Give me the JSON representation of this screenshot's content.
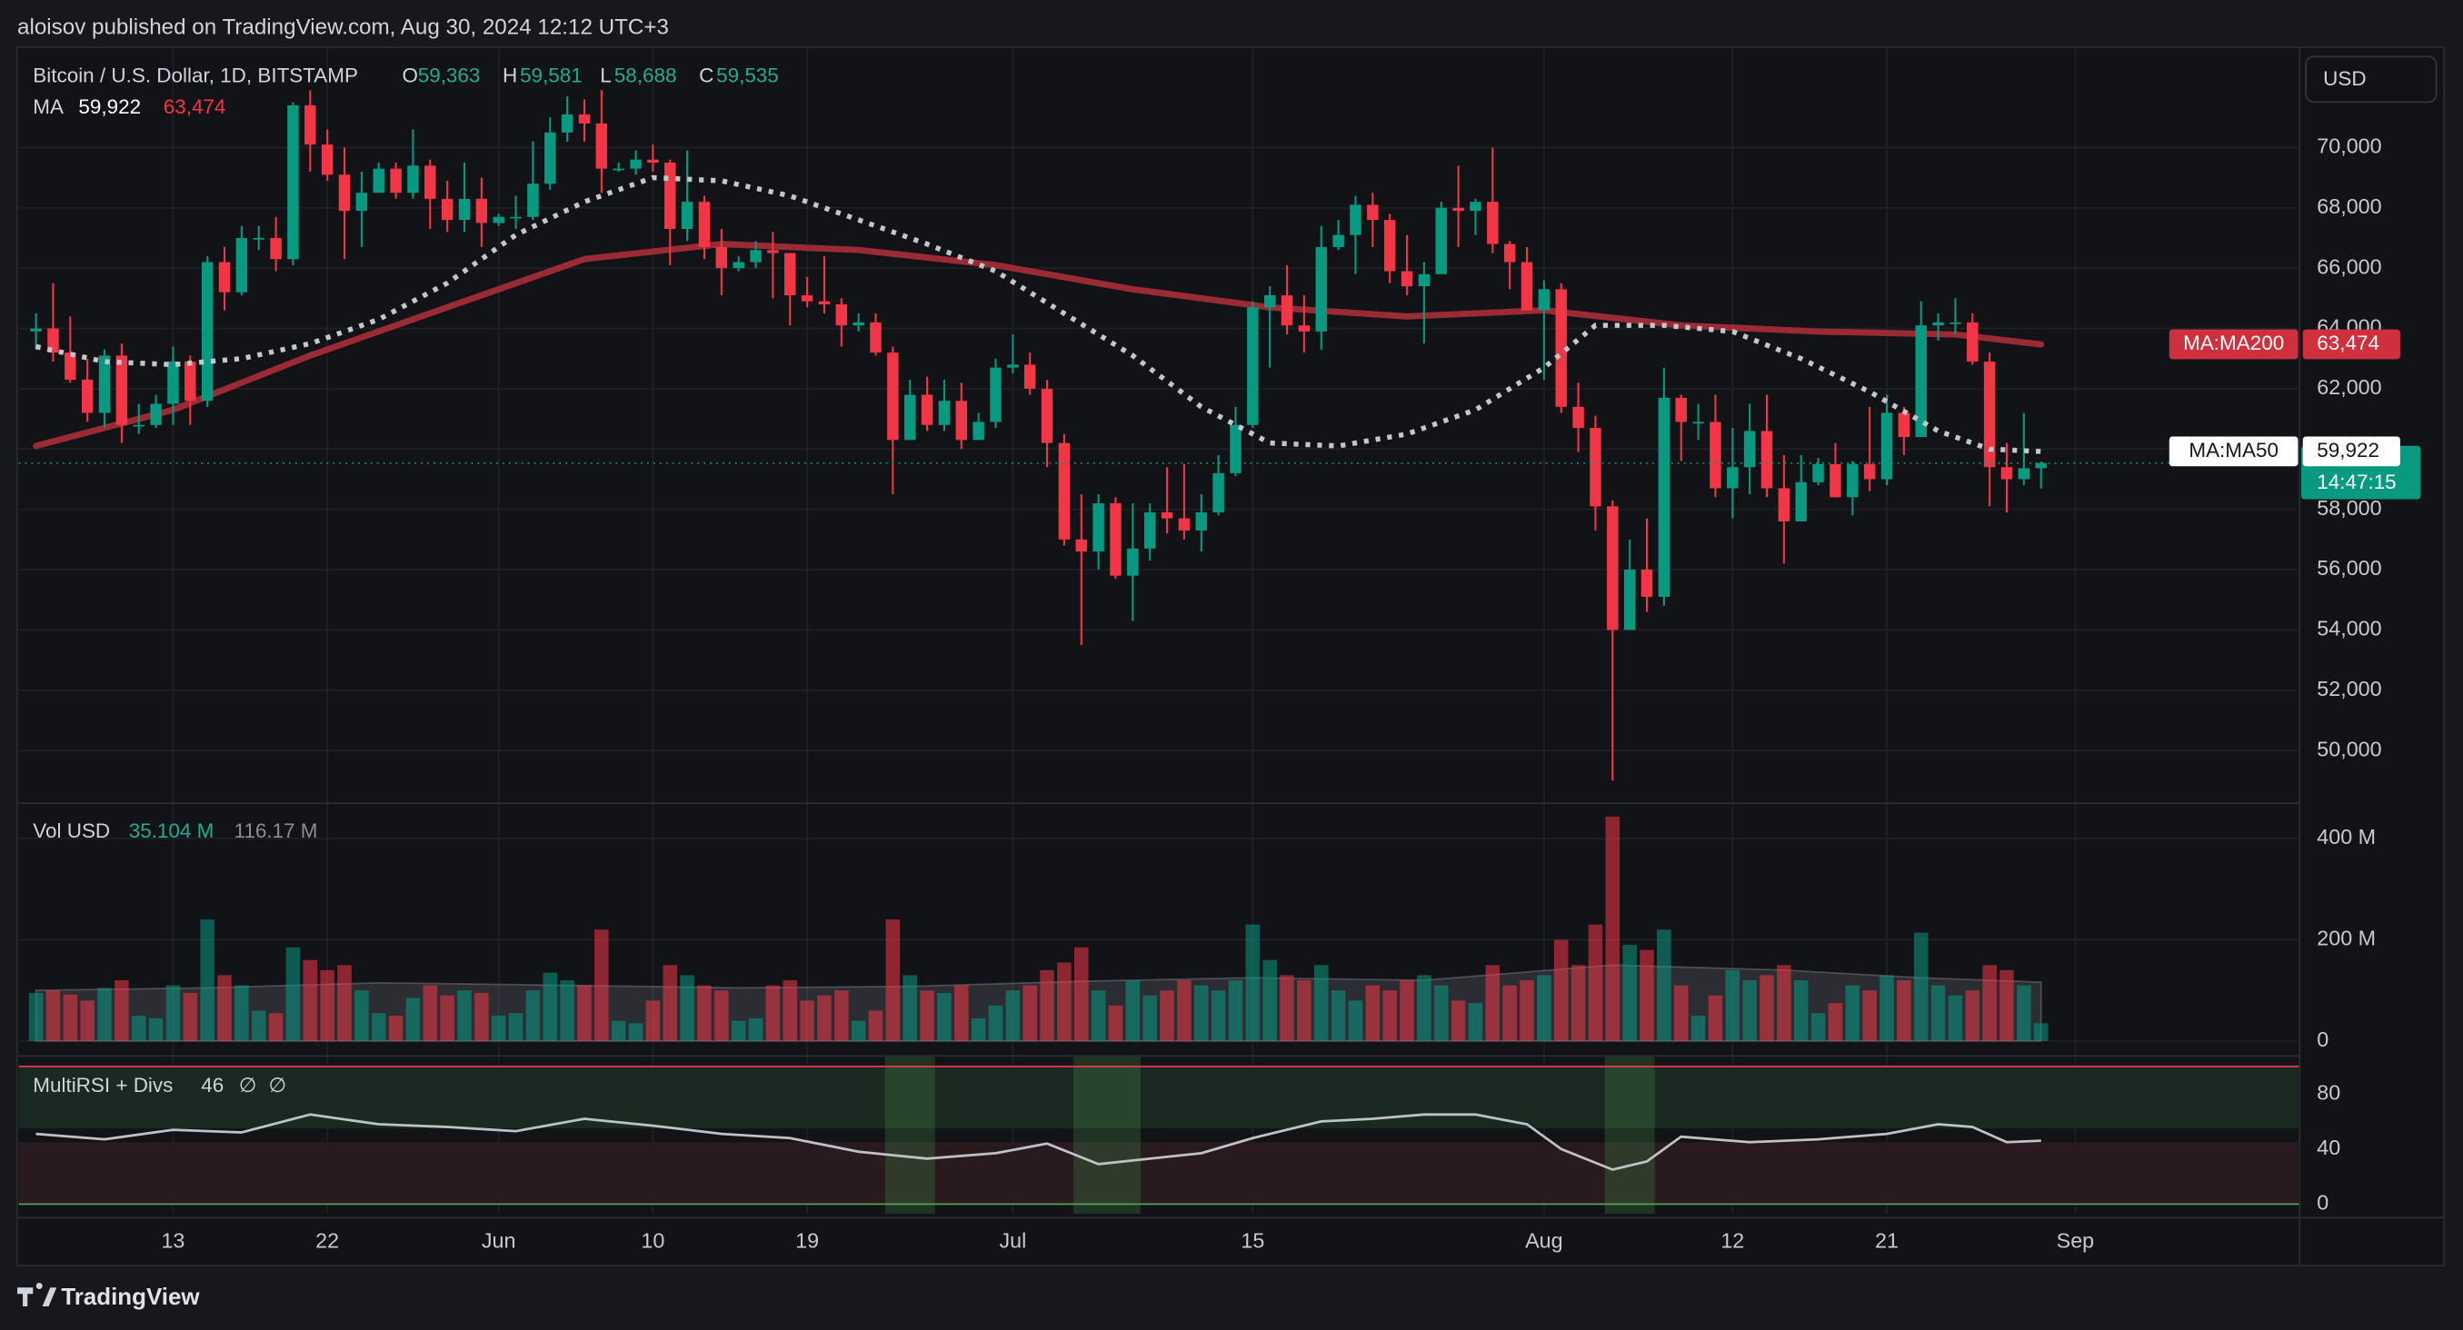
{
  "chart_data": {
    "type": "candlestick",
    "published": "aloisov published on TradingView.com, Aug 30, 2024 12:12 UTC+3",
    "title": "Bitcoin / U.S. Dollar, 1D, BITSTAMP",
    "currency": "USD",
    "footer": "TradingView",
    "up_color": "#089981",
    "down_color": "#f23645",
    "last": {
      "names": [
        "O",
        "H",
        "L",
        "C"
      ],
      "values": [
        59363,
        59581,
        58688,
        59535
      ],
      "value_labels": [
        "59,363",
        "59,581",
        "58,688",
        "59,535"
      ]
    },
    "ma_title": "MA",
    "xlim": [
      "2024-05-04",
      "2024-09-14"
    ],
    "xticks": [
      {
        "value": "2024-05-13",
        "label": "13"
      },
      {
        "value": "2024-05-22",
        "label": "22"
      },
      {
        "value": "2024-06-01",
        "label": "Jun"
      },
      {
        "value": "2024-06-10",
        "label": "10"
      },
      {
        "value": "2024-06-19",
        "label": "19"
      },
      {
        "value": "2024-07-01",
        "label": "Jul"
      },
      {
        "value": "2024-07-15",
        "label": "15"
      },
      {
        "value": "2024-08-01",
        "label": "Aug"
      },
      {
        "value": "2024-08-12",
        "label": "12"
      },
      {
        "value": "2024-08-21",
        "label": "21"
      },
      {
        "value": "2024-09-01",
        "label": "Sep"
      }
    ],
    "ylim": [
      48280,
      73330
    ],
    "yticks": [
      {
        "value": 50000,
        "label": "50,000"
      },
      {
        "value": 52000,
        "label": "52,000"
      },
      {
        "value": 54000,
        "label": "54,000"
      },
      {
        "value": 56000,
        "label": "56,000"
      },
      {
        "value": 58000,
        "label": "58,000"
      },
      {
        "value": 60000,
        "label": "60,000"
      },
      {
        "value": 62000,
        "label": "62,000"
      },
      {
        "value": 64000,
        "label": "64,000"
      },
      {
        "value": 66000,
        "label": "66,000"
      },
      {
        "value": 68000,
        "label": "68,000"
      },
      {
        "value": 70000,
        "label": "70,000"
      }
    ],
    "grid": true,
    "x": [
      "2024-05-05",
      "2024-05-06",
      "2024-05-07",
      "2024-05-08",
      "2024-05-09",
      "2024-05-10",
      "2024-05-11",
      "2024-05-12",
      "2024-05-13",
      "2024-05-14",
      "2024-05-15",
      "2024-05-16",
      "2024-05-17",
      "2024-05-18",
      "2024-05-19",
      "2024-05-20",
      "2024-05-21",
      "2024-05-22",
      "2024-05-23",
      "2024-05-24",
      "2024-05-25",
      "2024-05-26",
      "2024-05-27",
      "2024-05-28",
      "2024-05-29",
      "2024-05-30",
      "2024-05-31",
      "2024-06-01",
      "2024-06-02",
      "2024-06-03",
      "2024-06-04",
      "2024-06-05",
      "2024-06-06",
      "2024-06-07",
      "2024-06-08",
      "2024-06-09",
      "2024-06-10",
      "2024-06-11",
      "2024-06-12",
      "2024-06-13",
      "2024-06-14",
      "2024-06-15",
      "2024-06-16",
      "2024-06-17",
      "2024-06-18",
      "2024-06-19",
      "2024-06-20",
      "2024-06-21",
      "2024-06-22",
      "2024-06-23",
      "2024-06-24",
      "2024-06-25",
      "2024-06-26",
      "2024-06-27",
      "2024-06-28",
      "2024-06-29",
      "2024-06-30",
      "2024-07-01",
      "2024-07-02",
      "2024-07-03",
      "2024-07-04",
      "2024-07-05",
      "2024-07-06",
      "2024-07-07",
      "2024-07-08",
      "2024-07-09",
      "2024-07-10",
      "2024-07-11",
      "2024-07-12",
      "2024-07-13",
      "2024-07-14",
      "2024-07-15",
      "2024-07-16",
      "2024-07-17",
      "2024-07-18",
      "2024-07-19",
      "2024-07-20",
      "2024-07-21",
      "2024-07-22",
      "2024-07-23",
      "2024-07-24",
      "2024-07-25",
      "2024-07-26",
      "2024-07-27",
      "2024-07-28",
      "2024-07-29",
      "2024-07-30",
      "2024-07-31",
      "2024-08-01",
      "2024-08-02",
      "2024-08-03",
      "2024-08-04",
      "2024-08-05",
      "2024-08-06",
      "2024-08-07",
      "2024-08-08",
      "2024-08-09",
      "2024-08-10",
      "2024-08-11",
      "2024-08-12",
      "2024-08-13",
      "2024-08-14",
      "2024-08-15",
      "2024-08-16",
      "2024-08-17",
      "2024-08-18",
      "2024-08-19",
      "2024-08-20",
      "2024-08-21",
      "2024-08-22",
      "2024-08-23",
      "2024-08-24",
      "2024-08-25",
      "2024-08-26",
      "2024-08-27",
      "2024-08-28",
      "2024-08-29",
      "2024-08-30"
    ],
    "open": [
      63900,
      64000,
      63200,
      62300,
      61200,
      63100,
      60800,
      60800,
      61500,
      62900,
      61600,
      66200,
      65200,
      67000,
      67000,
      66300,
      71400,
      70100,
      69100,
      67900,
      68500,
      69300,
      68500,
      69400,
      68300,
      67600,
      68300,
      67500,
      67700,
      67700,
      68800,
      70500,
      71100,
      70800,
      69300,
      69300,
      69600,
      69500,
      67300,
      68200,
      66700,
      66000,
      66200,
      66600,
      66500,
      65100,
      64900,
      64800,
      64100,
      64200,
      63200,
      60300,
      61800,
      60800,
      61600,
      60300,
      60900,
      62700,
      62800,
      62000,
      60200,
      57000,
      56600,
      58200,
      55800,
      56700,
      57900,
      57700,
      57300,
      57900,
      59200,
      60800,
      64700,
      65100,
      64100,
      63900,
      66700,
      67100,
      68100,
      67600,
      65900,
      65400,
      65800,
      68000,
      67900,
      68200,
      66800,
      66200,
      64600,
      65300,
      61400,
      60700,
      58100,
      54000,
      56000,
      55100,
      61700,
      60900,
      60900,
      58700,
      59400,
      60600,
      58700,
      57600,
      58900,
      59500,
      58400,
      59500,
      59000,
      61200,
      60400,
      64100,
      64200,
      64200,
      62900,
      59400,
      59000,
      59363
    ],
    "high": [
      64500,
      65500,
      64400,
      63000,
      63300,
      63500,
      61500,
      61800,
      63400,
      63100,
      66400,
      66700,
      67400,
      67400,
      67700,
      71500,
      71900,
      70600,
      70000,
      69200,
      69500,
      69500,
      70600,
      69600,
      68900,
      69500,
      69000,
      67800,
      68400,
      70200,
      71000,
      71700,
      71600,
      71900,
      69500,
      69900,
      70100,
      69600,
      69900,
      68400,
      67300,
      66400,
      66900,
      67200,
      66500,
      65700,
      66400,
      65000,
      64500,
      64500,
      63400,
      62300,
      62400,
      62300,
      62200,
      61200,
      63000,
      63800,
      63200,
      62300,
      60500,
      58500,
      58500,
      58400,
      58200,
      58200,
      59400,
      59500,
      58500,
      59800,
      61400,
      64900,
      65400,
      66100,
      65100,
      67400,
      67600,
      68400,
      68500,
      67800,
      67100,
      66200,
      68200,
      69400,
      68300,
      70000,
      66900,
      66700,
      65600,
      65500,
      62200,
      61100,
      58300,
      57000,
      57700,
      62700,
      61800,
      61500,
      61800,
      60700,
      61500,
      61800,
      59800,
      59800,
      59700,
      60200,
      59600,
      61400,
      61800,
      61400,
      64900,
      64500,
      65000,
      64500,
      63200,
      60200,
      61200,
      59581
    ],
    "low": [
      63300,
      62900,
      62200,
      60900,
      60700,
      60200,
      60500,
      60700,
      60800,
      60800,
      61400,
      64600,
      65100,
      66600,
      65900,
      66100,
      69200,
      68900,
      66300,
      66700,
      68500,
      68300,
      68300,
      67300,
      67200,
      67200,
      66700,
      67400,
      67300,
      67600,
      68600,
      70200,
      70200,
      68500,
      69200,
      69100,
      69200,
      66100,
      66900,
      66300,
      65100,
      65900,
      66000,
      65000,
      64100,
      64700,
      64500,
      63400,
      63900,
      63100,
      58500,
      60300,
      60600,
      60600,
      60000,
      60300,
      60700,
      62500,
      61800,
      59400,
      56800,
      53500,
      56000,
      55700,
      54300,
      56300,
      57200,
      57000,
      56600,
      57800,
      59100,
      60700,
      62700,
      63800,
      63200,
      63300,
      66600,
      65800,
      66700,
      65500,
      65100,
      63500,
      65800,
      66700,
      67100,
      66500,
      65300,
      64600,
      62300,
      61200,
      59900,
      57300,
      49000,
      54000,
      54600,
      54800,
      59600,
      60300,
      58400,
      57700,
      58500,
      58400,
      56200,
      57600,
      58800,
      58400,
      57800,
      58600,
      58800,
      59800,
      60400,
      63600,
      63800,
      62800,
      58100,
      57900,
      58800,
      58688
    ],
    "close": [
      64000,
      63200,
      62300,
      61200,
      63100,
      60800,
      60800,
      61500,
      62900,
      61600,
      66200,
      65200,
      67000,
      67000,
      66300,
      71400,
      70100,
      69100,
      67900,
      68500,
      69300,
      68500,
      69400,
      68300,
      67600,
      68300,
      67500,
      67700,
      67700,
      68800,
      70500,
      71100,
      70800,
      69300,
      69300,
      69600,
      69500,
      67300,
      68200,
      66700,
      66000,
      66200,
      66600,
      66500,
      65100,
      64900,
      64800,
      64100,
      64200,
      63200,
      60300,
      61800,
      60800,
      61600,
      60300,
      60900,
      62700,
      62800,
      62000,
      60200,
      57000,
      56600,
      58200,
      55800,
      56700,
      57900,
      57700,
      57300,
      57900,
      59200,
      60800,
      64700,
      65100,
      64100,
      63900,
      66700,
      67100,
      68100,
      67600,
      65900,
      65400,
      65800,
      68000,
      67900,
      68200,
      66800,
      66200,
      64600,
      65300,
      61400,
      60700,
      58100,
      54000,
      56000,
      55100,
      61700,
      60900,
      60900,
      58700,
      59400,
      60600,
      58700,
      57600,
      58900,
      59500,
      58400,
      59500,
      59000,
      61200,
      60400,
      64100,
      64200,
      64200,
      62900,
      59400,
      59000,
      59363,
      59535
    ],
    "series": [
      {
        "name": "MA:MA50",
        "color": "#c4c6cc",
        "text_color": "#ffffff",
        "label_bg": "#ffffff",
        "label_fg": "#131722",
        "legend_value": 59922,
        "legend_label": "59,922",
        "x": [
          "2024-05-05",
          "2024-05-09",
          "2024-05-13",
          "2024-05-17",
          "2024-05-21",
          "2024-05-25",
          "2024-05-29",
          "2024-06-02",
          "2024-06-06",
          "2024-06-10",
          "2024-06-14",
          "2024-06-18",
          "2024-06-22",
          "2024-06-26",
          "2024-06-30",
          "2024-07-04",
          "2024-07-08",
          "2024-07-12",
          "2024-07-16",
          "2024-07-20",
          "2024-07-24",
          "2024-07-28",
          "2024-08-01",
          "2024-08-04",
          "2024-08-08",
          "2024-08-12",
          "2024-08-16",
          "2024-08-20",
          "2024-08-24",
          "2024-08-27",
          "2024-08-30"
        ],
        "values": [
          63400,
          62900,
          62800,
          63000,
          63500,
          64300,
          65500,
          67100,
          68200,
          69000,
          68900,
          68400,
          67600,
          66800,
          65900,
          64500,
          63100,
          61400,
          60200,
          60100,
          60500,
          61300,
          62700,
          64100,
          64100,
          63900,
          63000,
          61900,
          60600,
          60000,
          59922
        ]
      },
      {
        "name": "MA:MA200",
        "color": "#9a2b35",
        "text_color": "#f23645",
        "label_bg": "#d0303e",
        "label_fg": "#ffffff",
        "legend_value": 63474,
        "legend_label": "63,474",
        "x": [
          "2024-05-05",
          "2024-05-13",
          "2024-05-21",
          "2024-05-29",
          "2024-06-06",
          "2024-06-14",
          "2024-06-22",
          "2024-06-30",
          "2024-07-08",
          "2024-07-16",
          "2024-07-24",
          "2024-08-01",
          "2024-08-09",
          "2024-08-17",
          "2024-08-25",
          "2024-08-30"
        ],
        "values": [
          60100,
          61300,
          63100,
          64700,
          66300,
          66800,
          66600,
          66100,
          65300,
          64700,
          64400,
          64600,
          64100,
          63900,
          63800,
          63474
        ]
      }
    ],
    "price_label": {
      "value": 59535,
      "label": "59,535",
      "countdown": "14:47:15",
      "color": "#089981"
    },
    "volume": {
      "title": "Vol USD",
      "ylim": [
        0,
        468
      ],
      "yticks": [
        0,
        {
          "value": 200,
          "label": "200 M"
        },
        {
          "value": 400,
          "label": "400 M"
        }
      ],
      "values": [
        95,
        100,
        92,
        80,
        105,
        120,
        50,
        45,
        110,
        95,
        240,
        130,
        110,
        60,
        55,
        185,
        160,
        140,
        150,
        100,
        55,
        50,
        85,
        110,
        90,
        100,
        95,
        50,
        55,
        100,
        135,
        120,
        110,
        220,
        40,
        35,
        80,
        150,
        130,
        110,
        100,
        40,
        45,
        110,
        120,
        80,
        90,
        100,
        40,
        60,
        240,
        130,
        100,
        95,
        110,
        45,
        70,
        100,
        110,
        140,
        155,
        185,
        100,
        70,
        120,
        90,
        100,
        120,
        110,
        100,
        120,
        230,
        160,
        130,
        120,
        150,
        100,
        80,
        110,
        100,
        120,
        130,
        110,
        80,
        75,
        150,
        110,
        120,
        130,
        200,
        150,
        230,
        443,
        190,
        180,
        220,
        110,
        50,
        90,
        140,
        120,
        130,
        150,
        120,
        55,
        75,
        110,
        100,
        130,
        120,
        214,
        110,
        90,
        100,
        150,
        140,
        110,
        35.104
      ],
      "last_label": "35.104 M",
      "ma": {
        "x": [
          "2024-05-05",
          "2024-05-15",
          "2024-05-25",
          "2024-06-05",
          "2024-06-15",
          "2024-06-25",
          "2024-07-05",
          "2024-07-15",
          "2024-07-25",
          "2024-08-05",
          "2024-08-15",
          "2024-08-23",
          "2024-08-30"
        ],
        "values": [
          100,
          105,
          115,
          110,
          105,
          108,
          118,
          125,
          120,
          150,
          140,
          125,
          116.17
        ],
        "last_label": "116.17 M"
      }
    },
    "rsi": {
      "title": "MultiRSI + Divs",
      "last": 46,
      "symbols": [
        "∅",
        "∅"
      ],
      "ylim": [
        -7,
        107
      ],
      "yticks": [
        0,
        40,
        80
      ],
      "levels": [
        {
          "value": 100,
          "color": "#f23645"
        },
        {
          "value": 0,
          "color": "#4caf50"
        }
      ],
      "zones": [
        {
          "from": 100,
          "to": 55,
          "color": "#1a2a22"
        },
        {
          "from": 45,
          "to": 0,
          "color": "#281a1f"
        }
      ],
      "highlights": [
        {
          "from": "2024-06-24",
          "to": "2024-06-26"
        },
        {
          "from": "2024-07-05",
          "to": "2024-07-08"
        },
        {
          "from": "2024-08-05",
          "to": "2024-08-07"
        }
      ],
      "color": "#bfc1c6",
      "x": [
        "2024-05-05",
        "2024-05-09",
        "2024-05-13",
        "2024-05-17",
        "2024-05-21",
        "2024-05-25",
        "2024-05-29",
        "2024-06-02",
        "2024-06-06",
        "2024-06-10",
        "2024-06-14",
        "2024-06-18",
        "2024-06-22",
        "2024-06-26",
        "2024-06-30",
        "2024-07-03",
        "2024-07-06",
        "2024-07-09",
        "2024-07-12",
        "2024-07-15",
        "2024-07-19",
        "2024-07-22",
        "2024-07-25",
        "2024-07-28",
        "2024-07-31",
        "2024-08-02",
        "2024-08-05",
        "2024-08-07",
        "2024-08-09",
        "2024-08-13",
        "2024-08-17",
        "2024-08-21",
        "2024-08-24",
        "2024-08-26",
        "2024-08-28",
        "2024-08-30"
      ],
      "values": [
        51,
        47,
        54,
        52,
        65,
        58,
        56,
        53,
        62,
        57,
        51,
        48,
        38,
        33,
        37,
        44,
        29,
        33,
        37,
        48,
        60,
        62,
        65,
        65,
        58,
        40,
        25,
        31,
        49,
        45,
        47,
        51,
        58,
        56,
        45,
        46
      ]
    }
  }
}
